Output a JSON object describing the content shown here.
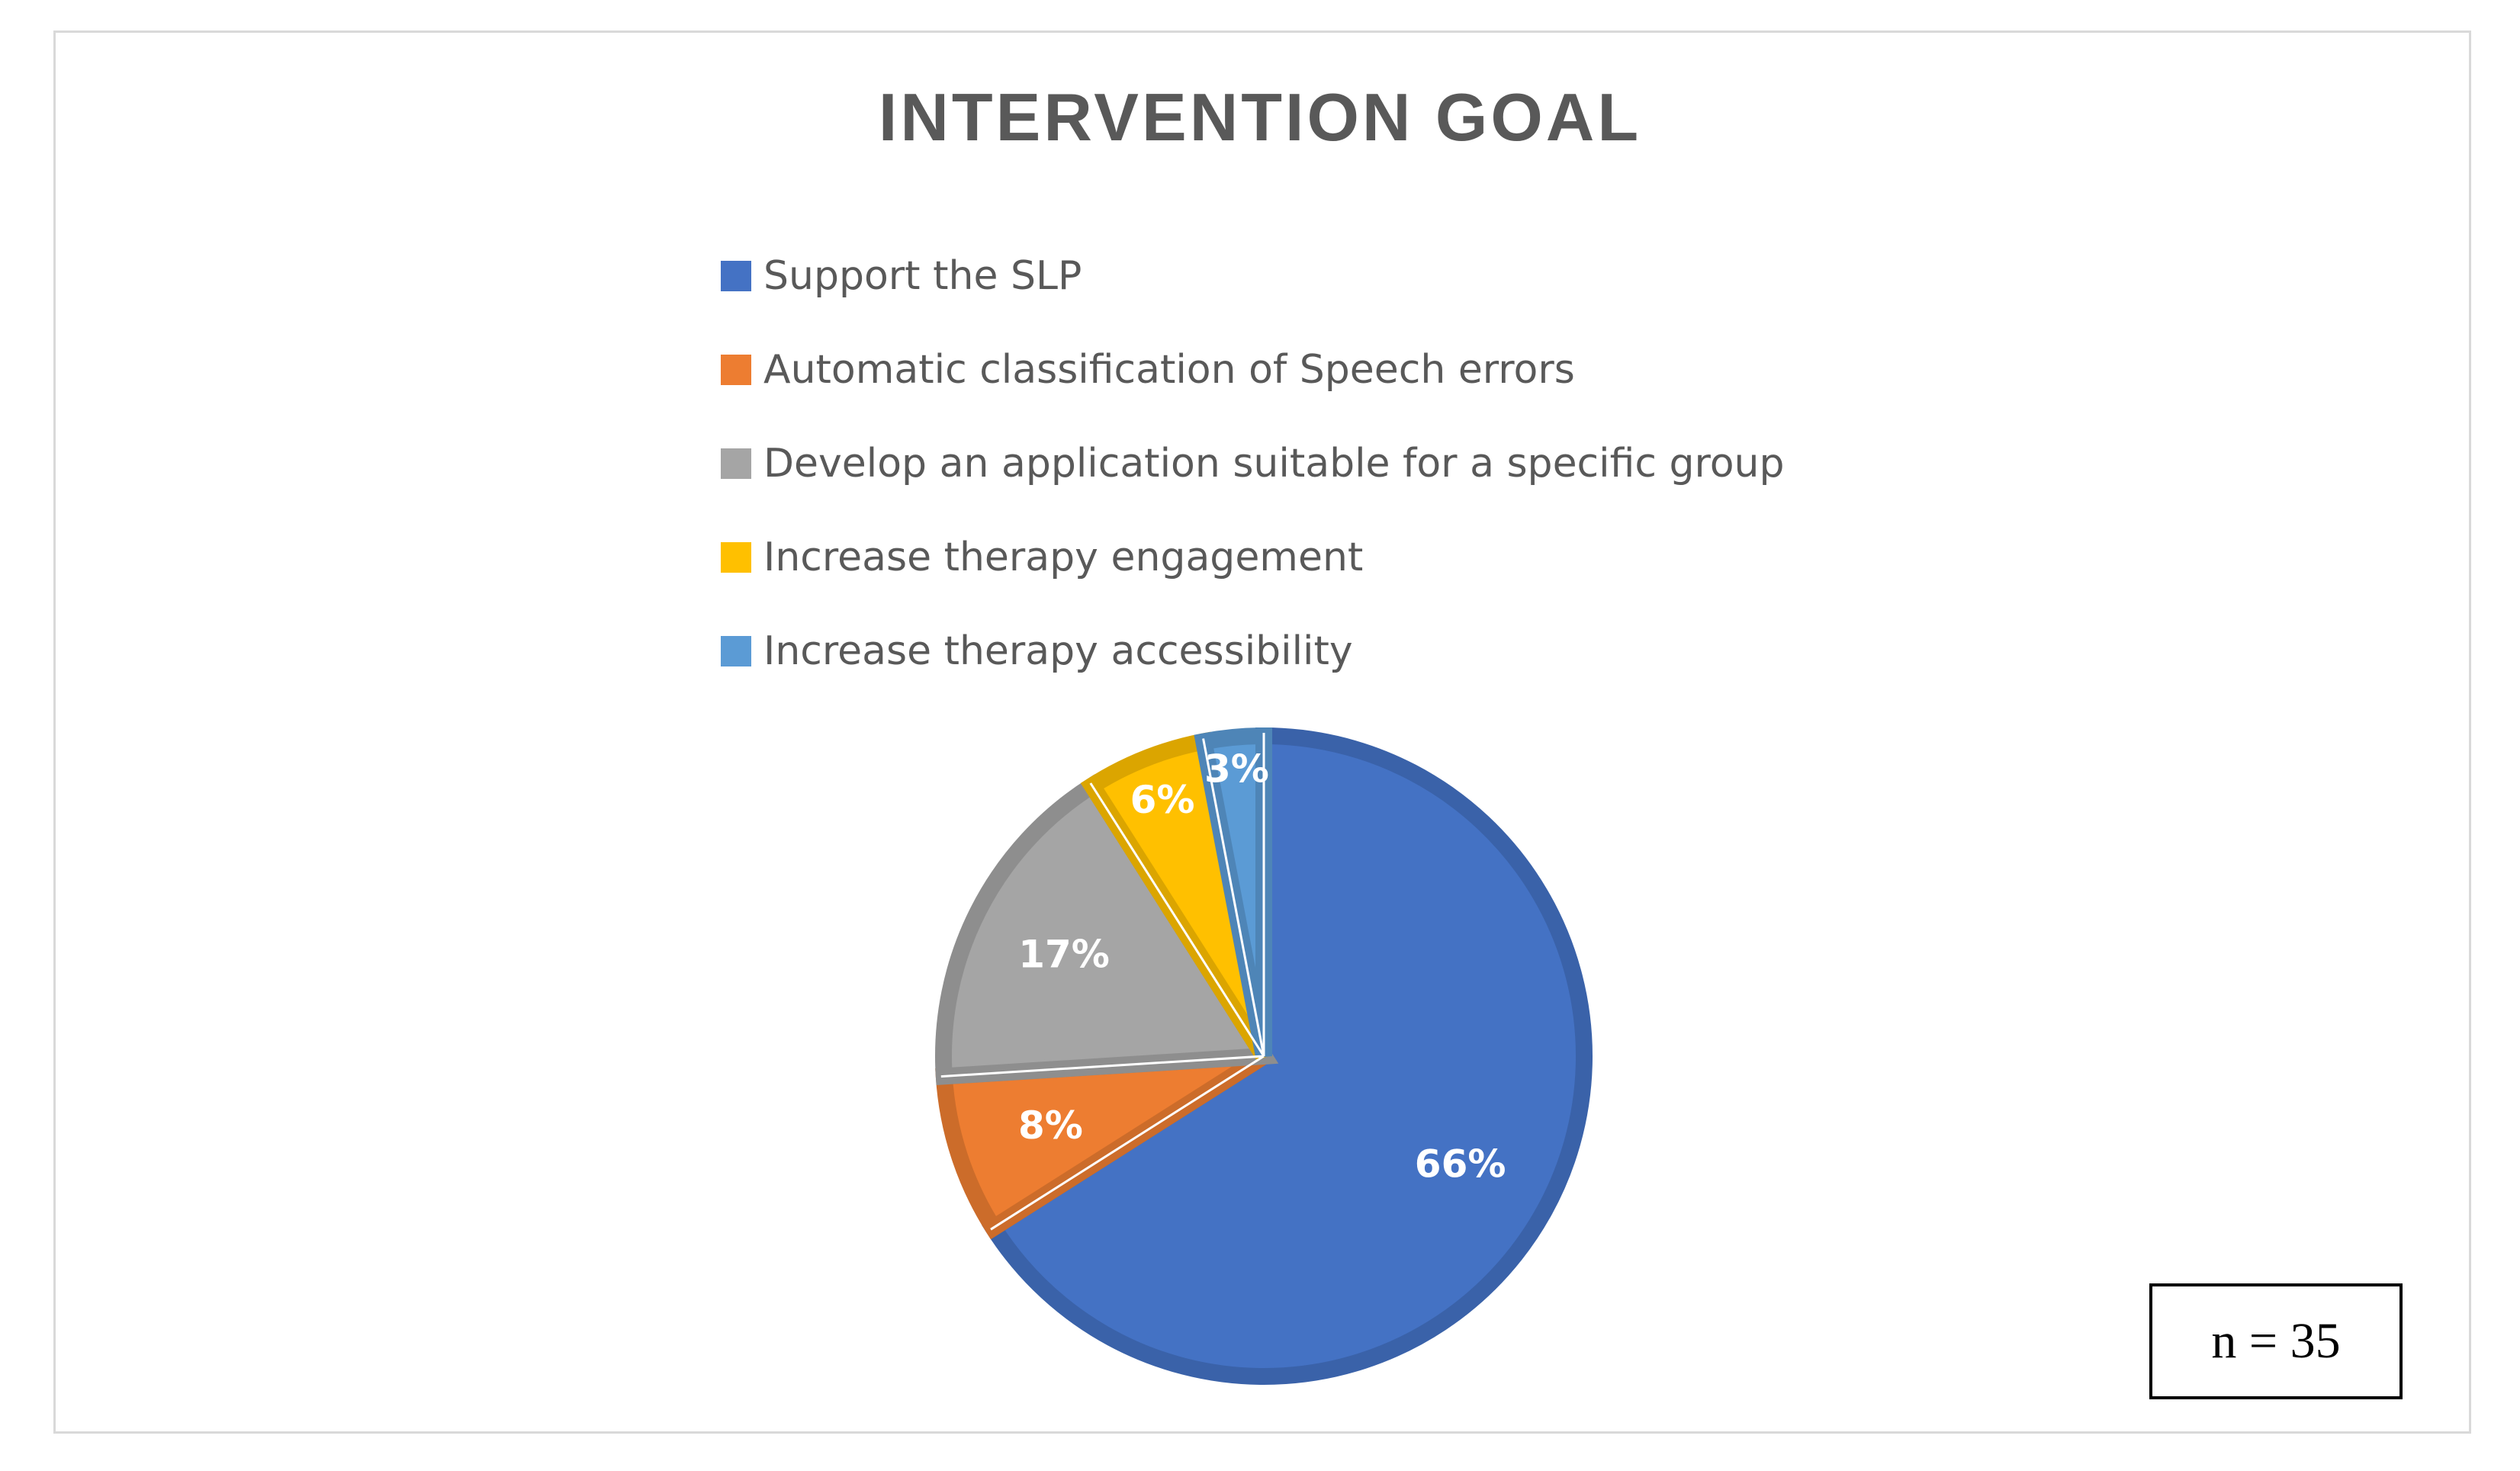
{
  "chart_data": {
    "type": "pie",
    "title": "INTERVENTION GOAL",
    "legend_position": "top",
    "slices": [
      {
        "name": "Support the SLP",
        "value": 66,
        "label": "66%",
        "color": "#4472C4"
      },
      {
        "name": "Automatic classification of Speech errors",
        "value": 8,
        "label": "8%",
        "color": "#ED7D31"
      },
      {
        "name": "Develop an application suitable for a specific group",
        "value": 17,
        "label": "17%",
        "color": "#A5A5A5"
      },
      {
        "name": "Increase therapy engagement",
        "value": 6,
        "label": "6%",
        "color": "#FFC000"
      },
      {
        "name": "Increase therapy accessibility",
        "value": 3,
        "label": "3%",
        "color": "#5B9BD5"
      }
    ],
    "annotation": "n = 35"
  }
}
